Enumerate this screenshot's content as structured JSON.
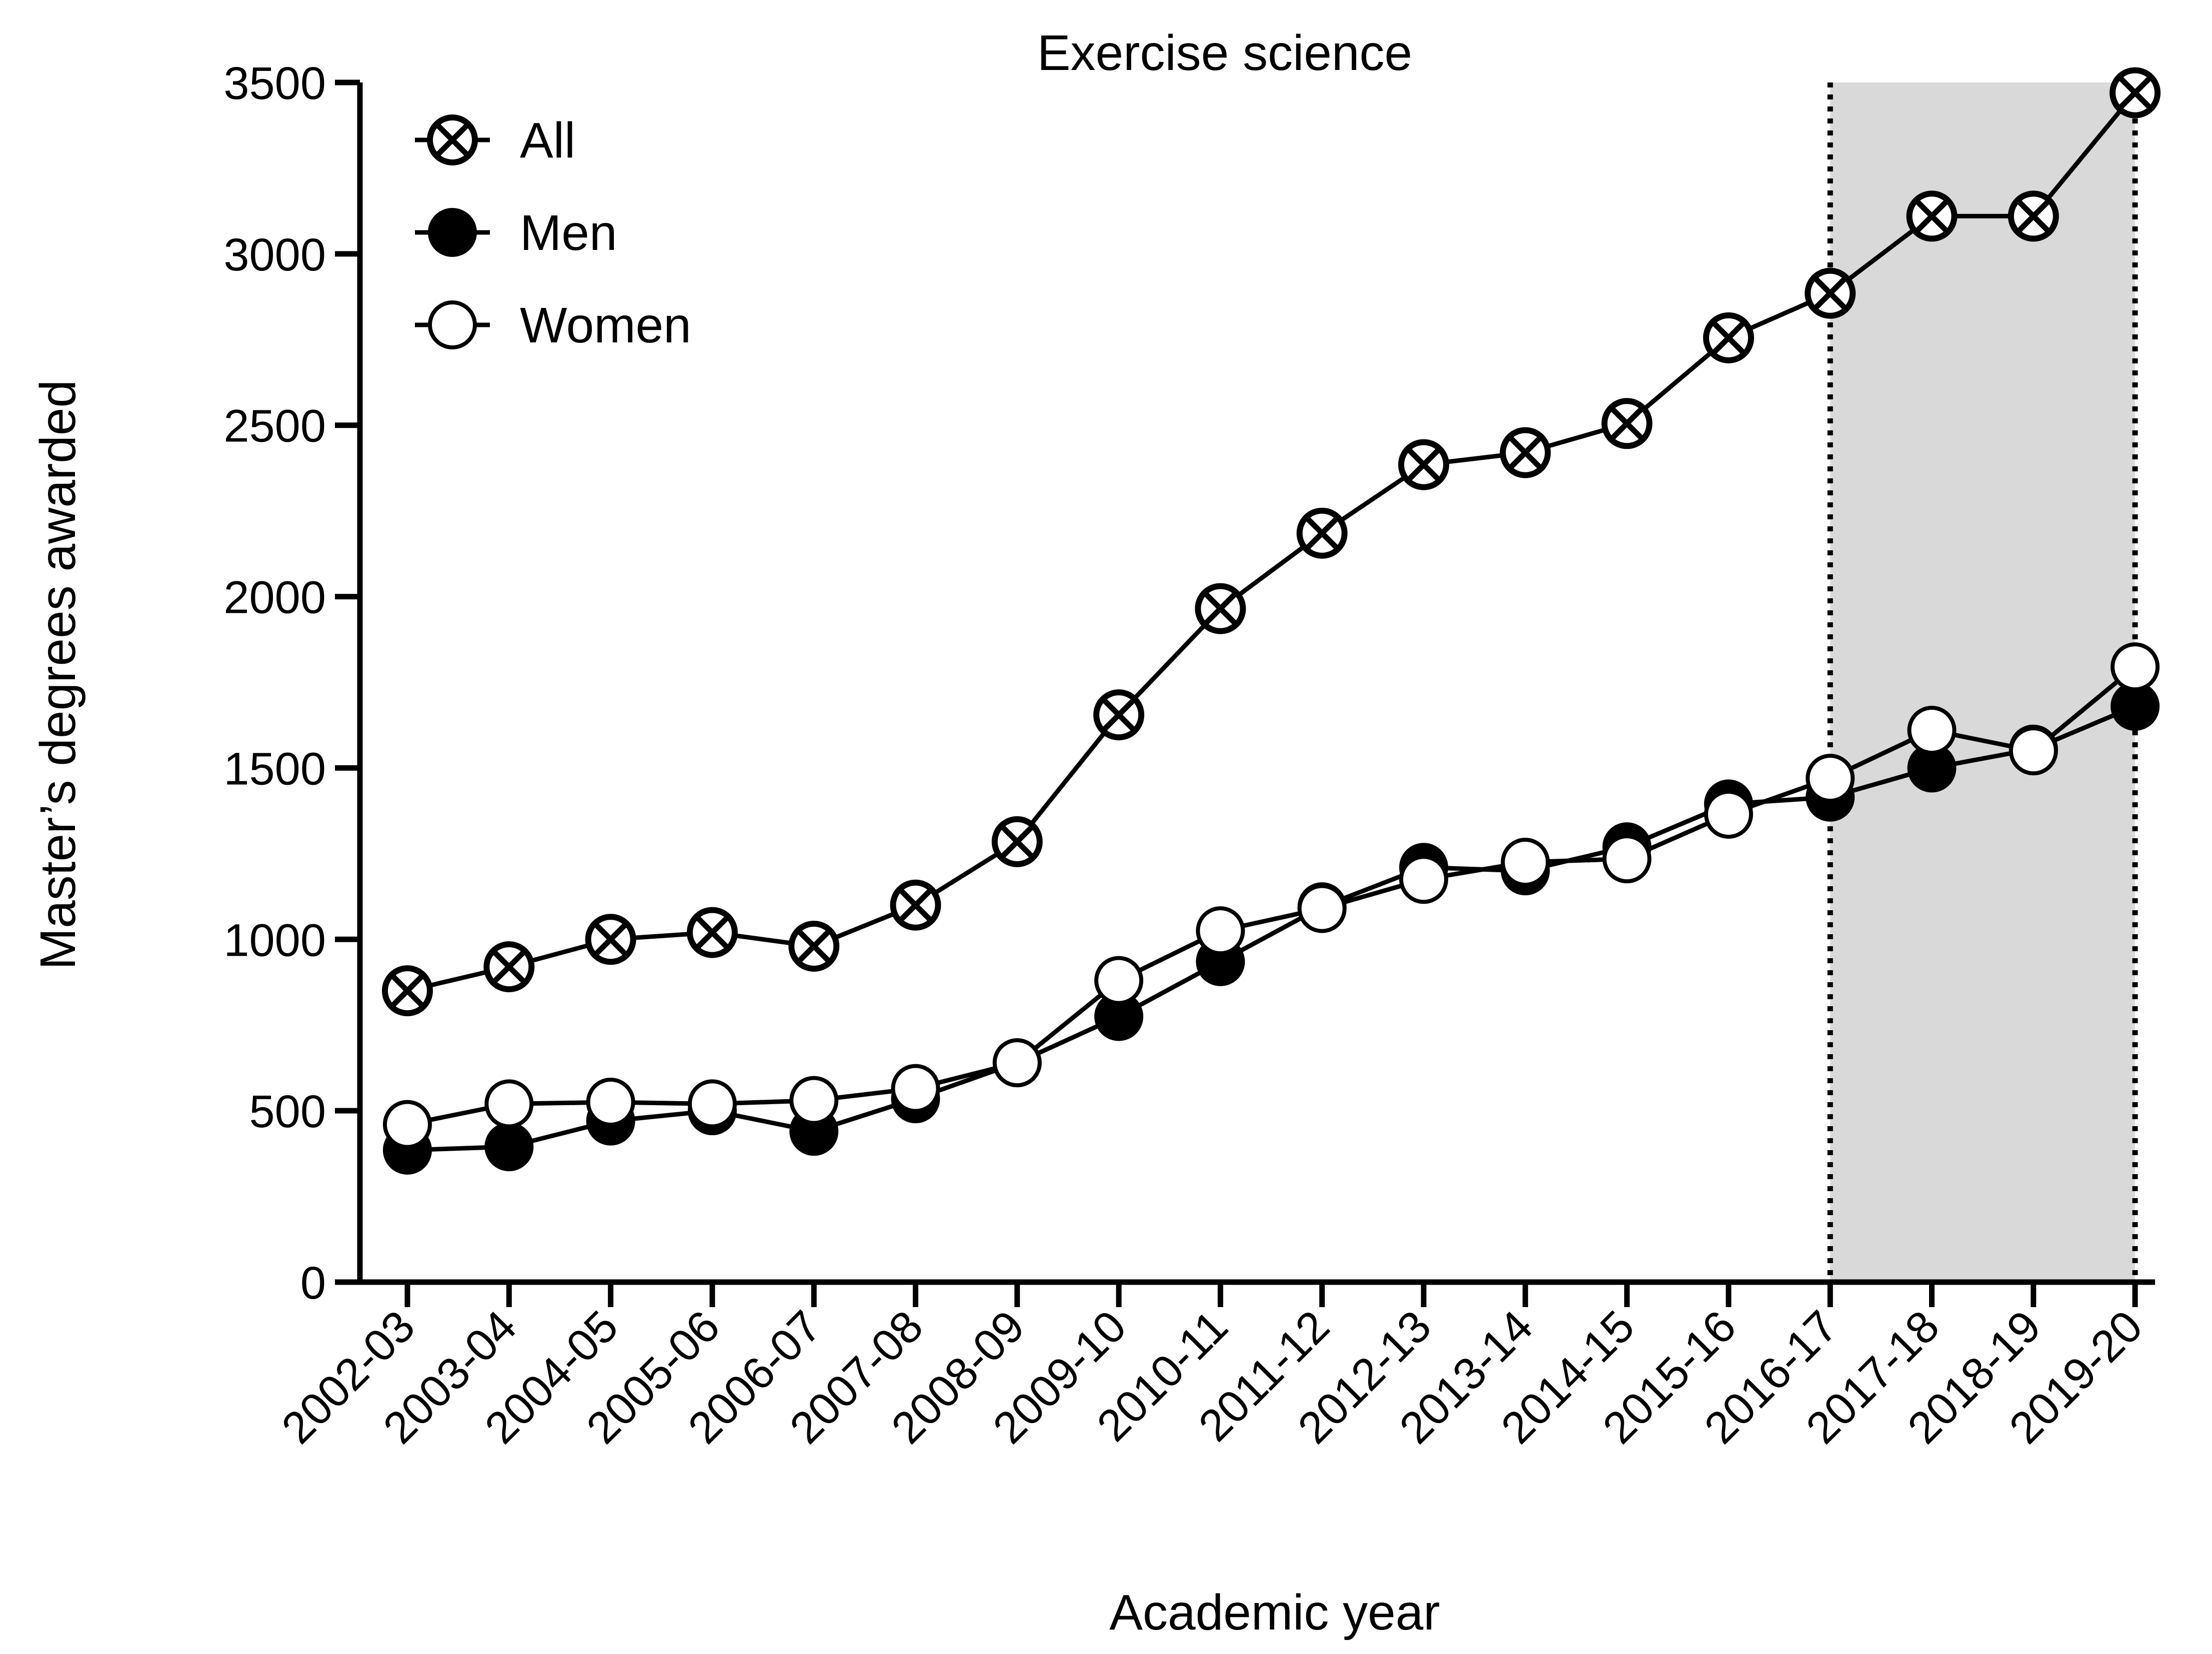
{
  "chart_data": {
    "type": "line",
    "title": "Exercise science",
    "xlabel": "Academic year",
    "ylabel": "Master’s degrees awarded",
    "ylim": [
      0,
      3500
    ],
    "yticks": [
      0,
      500,
      1000,
      1500,
      2000,
      2500,
      3000,
      3500
    ],
    "grid": false,
    "legend_position": "top-left",
    "categories": [
      "2002-03",
      "2003-04",
      "2004-05",
      "2005-06",
      "2006-07",
      "2007-08",
      "2008-09",
      "2009-10",
      "2010-11",
      "2011-12",
      "2012-13",
      "2013-14",
      "2014-15",
      "2015-16",
      "2016-17",
      "2017-18",
      "2018-19",
      "2019-20"
    ],
    "highlight_range": {
      "start": "2016-17",
      "end": "2019-20",
      "color": "#d9d9d9"
    },
    "series": [
      {
        "name": "All",
        "marker": "circle-x",
        "color": "#000000",
        "values": [
          850,
          920,
          1000,
          1020,
          980,
          1100,
          1285,
          1655,
          1965,
          2185,
          2385,
          2420,
          2505,
          2755,
          2885,
          3110,
          3110,
          3470
        ]
      },
      {
        "name": "Men",
        "marker": "filled-circle",
        "color": "#000000",
        "values": [
          385,
          395,
          470,
          500,
          440,
          535,
          640,
          775,
          935,
          1095,
          1210,
          1200,
          1270,
          1395,
          1415,
          1500,
          1555,
          1680
        ]
      },
      {
        "name": "Women",
        "marker": "open-circle",
        "color": "#000000",
        "values": [
          460,
          520,
          525,
          520,
          530,
          565,
          640,
          880,
          1025,
          1090,
          1175,
          1225,
          1235,
          1365,
          1470,
          1610,
          1550,
          1795
        ]
      }
    ]
  }
}
